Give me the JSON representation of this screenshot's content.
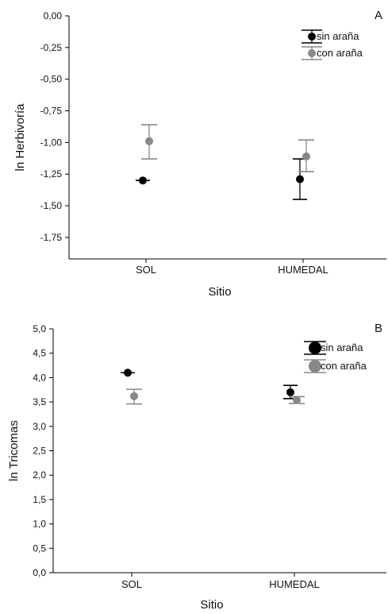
{
  "chart_data": [
    {
      "type": "scatter",
      "panel_label": "A",
      "title": "",
      "xlabel": "Sitio",
      "ylabel": "ln Herbivoría",
      "categories": [
        "SOL",
        "HUMEDAL"
      ],
      "ylim": [
        -1.92,
        0.0
      ],
      "yticks": [
        "0,00",
        "-0,25",
        "-0,50",
        "-0,75",
        "-1,00",
        "-1,25",
        "-1,50",
        "-1,75"
      ],
      "ytick_values": [
        0.0,
        -0.25,
        -0.5,
        -0.75,
        -1.0,
        -1.25,
        -1.5,
        -1.75
      ],
      "legend_position": "top-right",
      "grid": false,
      "series": [
        {
          "name": "sin araña",
          "color": "#000000",
          "values": [
            -1.3,
            -1.29
          ],
          "error_low": [
            -1.3,
            -1.45
          ],
          "error_high": [
            -1.3,
            -1.13
          ]
        },
        {
          "name": "con araña",
          "color": "#888888",
          "values": [
            -0.99,
            -1.11
          ],
          "error_low": [
            -1.13,
            -1.23
          ],
          "error_high": [
            -0.86,
            -0.98
          ]
        }
      ]
    },
    {
      "type": "scatter",
      "panel_label": "B",
      "title": "",
      "xlabel": "Sitio",
      "ylabel": "ln Tricomas",
      "categories": [
        "SOL",
        "HUMEDAL"
      ],
      "ylim": [
        0.0,
        5.0
      ],
      "yticks": [
        "5,0",
        "4,5",
        "4,0",
        "3,5",
        "3,0",
        "2,5",
        "2,0",
        "1,5",
        "1,0",
        "0,5",
        "0,0"
      ],
      "ytick_values": [
        5.0,
        4.5,
        4.0,
        3.5,
        3.0,
        2.5,
        2.0,
        1.5,
        1.0,
        0.5,
        0.0
      ],
      "legend_position": "top-right",
      "grid": false,
      "series": [
        {
          "name": "sin araña",
          "color": "#000000",
          "values": [
            4.1,
            3.7
          ],
          "error_low": [
            4.1,
            3.57
          ],
          "error_high": [
            4.1,
            3.84
          ]
        },
        {
          "name": "con araña",
          "color": "#888888",
          "values": [
            3.62,
            3.54
          ],
          "error_low": [
            3.46,
            3.47
          ],
          "error_high": [
            3.76,
            3.61
          ]
        }
      ]
    }
  ]
}
